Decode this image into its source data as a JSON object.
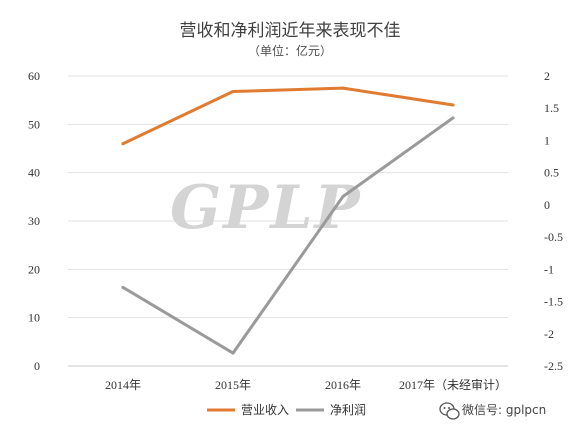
{
  "watermark": "GPLP",
  "wechat_label": "微信号: gplpcn",
  "icon": "wechat-icon",
  "chart_data": {
    "type": "line",
    "title": "营收和净利润近年来表现不佳",
    "subtitle": "（单位：亿元）",
    "categories": [
      "2014年",
      "2015年",
      "2016年",
      "2017年（未经审计）"
    ],
    "left_axis": {
      "ylim": [
        0,
        60
      ],
      "ticks": [
        0,
        10,
        20,
        30,
        40,
        50,
        60
      ]
    },
    "right_axis": {
      "ylim": [
        -2.5,
        2
      ],
      "ticks": [
        -2.5,
        -2,
        -1.5,
        -1,
        -0.5,
        0,
        0.5,
        1,
        1.5,
        2
      ]
    },
    "series": [
      {
        "name": "营业收入",
        "axis": "left",
        "color": "#E07B30",
        "values": [
          46,
          56.8,
          57.5,
          54
        ]
      },
      {
        "name": "净利润",
        "axis": "right",
        "color": "#9A9A9A",
        "values": [
          -1.28,
          -2.3,
          0.13,
          1.35
        ]
      }
    ],
    "grid": true,
    "legend": "bottom"
  }
}
